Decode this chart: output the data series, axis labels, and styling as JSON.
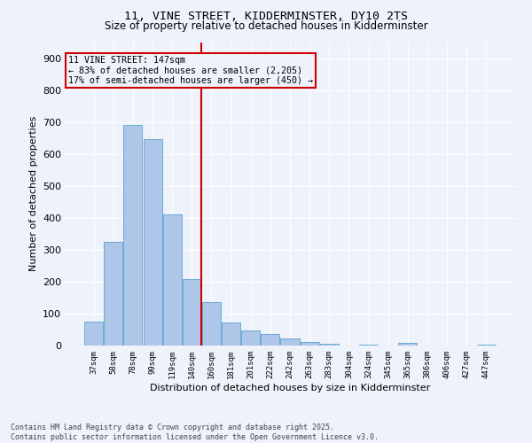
{
  "title1": "11, VINE STREET, KIDDERMINSTER, DY10 2TS",
  "title2": "Size of property relative to detached houses in Kidderminster",
  "xlabel": "Distribution of detached houses by size in Kidderminster",
  "ylabel": "Number of detached properties",
  "categories": [
    "37sqm",
    "58sqm",
    "78sqm",
    "99sqm",
    "119sqm",
    "140sqm",
    "160sqm",
    "181sqm",
    "201sqm",
    "222sqm",
    "242sqm",
    "263sqm",
    "283sqm",
    "304sqm",
    "324sqm",
    "345sqm",
    "365sqm",
    "386sqm",
    "406sqm",
    "427sqm",
    "447sqm"
  ],
  "values": [
    75,
    325,
    690,
    645,
    410,
    208,
    135,
    72,
    47,
    35,
    22,
    10,
    5,
    0,
    3,
    0,
    8,
    0,
    0,
    0,
    4
  ],
  "bar_color": "#aec6e8",
  "bar_edge_color": "#6aaad4",
  "vline_x": 5.5,
  "vline_color": "#cc0000",
  "box_color": "#cc0000",
  "annotation_line1": "11 VINE STREET: 147sqm",
  "annotation_line2": "← 83% of detached houses are smaller (2,205)",
  "annotation_line3": "17% of semi-detached houses are larger (450) →",
  "ylim": [
    0,
    950
  ],
  "yticks": [
    0,
    100,
    200,
    300,
    400,
    500,
    600,
    700,
    800,
    900
  ],
  "background_color": "#eef2fb",
  "grid_color": "#ffffff",
  "footer1": "Contains HM Land Registry data © Crown copyright and database right 2025.",
  "footer2": "Contains public sector information licensed under the Open Government Licence v3.0."
}
